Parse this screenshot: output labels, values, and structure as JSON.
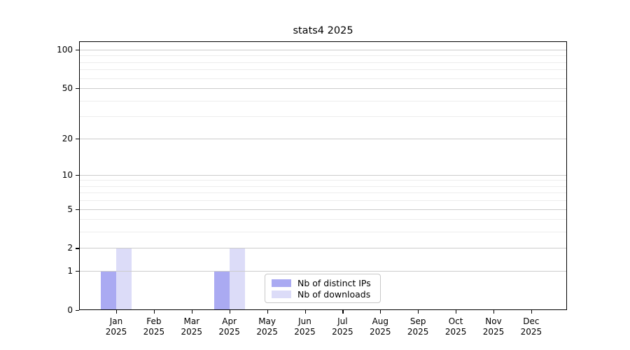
{
  "chart_data": {
    "type": "bar",
    "title": "stats4 2025",
    "year_label": "2025",
    "categories": [
      "Jan",
      "Feb",
      "Mar",
      "Apr",
      "May",
      "Jun",
      "Jul",
      "Aug",
      "Sep",
      "Oct",
      "Nov",
      "Dec"
    ],
    "series": [
      {
        "name": "Nb of distinct IPs",
        "color": "#aaaaf2",
        "values": [
          1,
          0,
          0,
          1,
          0,
          0,
          0,
          0,
          0,
          0,
          0,
          0
        ]
      },
      {
        "name": "Nb of downloads",
        "color": "#dcdcf8",
        "values": [
          2,
          0,
          0,
          2,
          0,
          0,
          0,
          0,
          0,
          0,
          0,
          0
        ]
      }
    ],
    "y_axis": {
      "scale": "log1p",
      "ticks": [
        0,
        1,
        2,
        5,
        10,
        20,
        50,
        100
      ],
      "minor_ticks": [
        3,
        4,
        6,
        7,
        8,
        9,
        30,
        40,
        60,
        70,
        80,
        90
      ],
      "max": 116
    },
    "x_axis": {
      "label_line2": "2025"
    },
    "grid": true,
    "legend": {
      "position": "inside-bottom-center"
    },
    "colors": {
      "major_grid": "#cccccc",
      "minor_grid": "#ededed",
      "spine": "#000000"
    }
  }
}
